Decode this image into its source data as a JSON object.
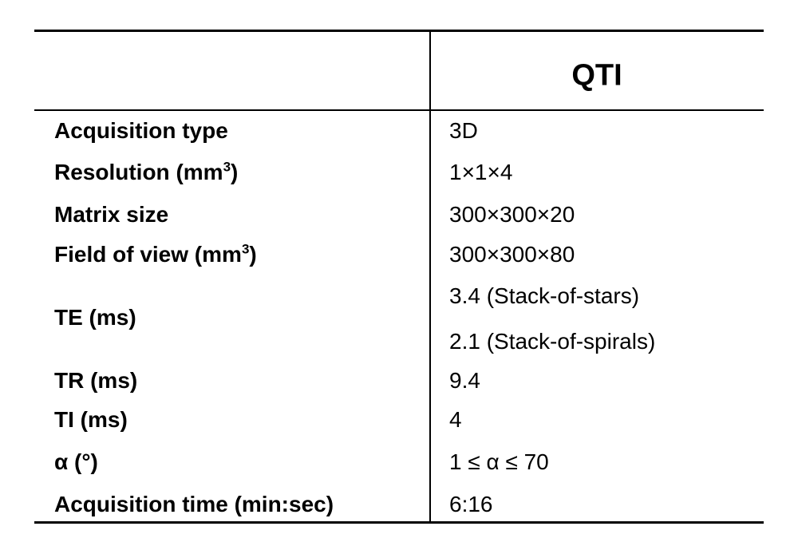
{
  "table": {
    "header": {
      "column": "QTI"
    },
    "rows": [
      {
        "label": "Acquisition type",
        "values": [
          "3D"
        ]
      },
      {
        "label": "Resolution (mm",
        "label_sup": "3",
        "label_end": ")",
        "values": [
          "1×1×4"
        ]
      },
      {
        "label": "Matrix size",
        "values": [
          "300×300×20"
        ]
      },
      {
        "label": "Field of view (mm",
        "label_sup": "3",
        "label_end": ")",
        "values": [
          "300×300×80"
        ]
      },
      {
        "label": "TE (ms)",
        "values": [
          "3.4 (Stack-of-stars)",
          "2.1 (Stack-of-spirals)"
        ]
      },
      {
        "label": "TR (ms)",
        "values": [
          "9.4"
        ]
      },
      {
        "label": "TI (ms)",
        "values": [
          "4"
        ]
      },
      {
        "label": "α (°)",
        "values": [
          "1 ≤ α ≤ 70"
        ]
      },
      {
        "label": "Acquisition time (min:sec)",
        "values": [
          "6:16"
        ]
      }
    ]
  }
}
